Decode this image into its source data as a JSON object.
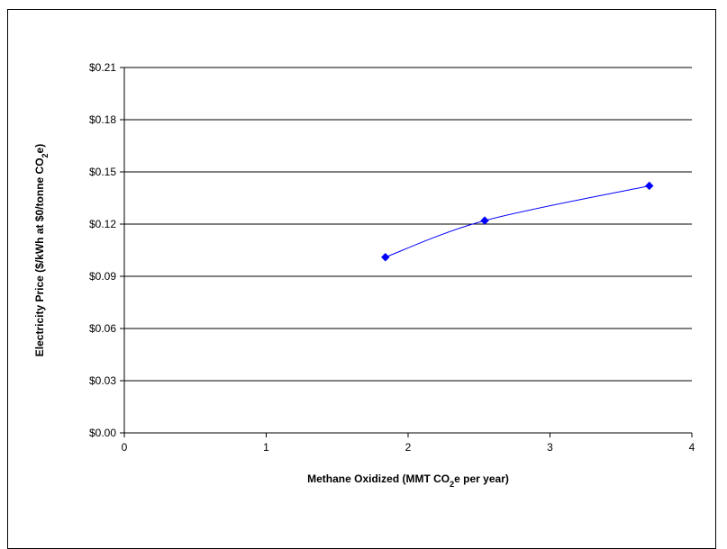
{
  "chart_data": {
    "type": "line",
    "title": "",
    "xlabel": {
      "before": "Methane Oxidized (MMT CO",
      "sub": "2",
      "after": "e per year)"
    },
    "ylabel": {
      "before": "Electricity Price ($/kWh at $0/tonne CO",
      "sub": "2",
      "after": "e)"
    },
    "xlim": [
      0,
      4
    ],
    "ylim": [
      0,
      0.21
    ],
    "x_ticks": [
      0,
      1,
      2,
      3,
      4
    ],
    "x_tick_labels": [
      "0",
      "1",
      "2",
      "3",
      "4"
    ],
    "y_ticks": [
      0,
      0.03,
      0.06,
      0.09,
      0.12,
      0.15,
      0.18,
      0.21
    ],
    "y_tick_labels": [
      "$0.00",
      "$0.03",
      "$0.06",
      "$0.09",
      "$0.12",
      "$0.15",
      "$0.18",
      "$0.21"
    ],
    "grid": "horizontal",
    "legend": "none",
    "series": [
      {
        "color": "#0000ff",
        "marker": "diamond",
        "points": [
          {
            "x": 1.84,
            "y": 0.101
          },
          {
            "x": 2.54,
            "y": 0.122
          },
          {
            "x": 3.7,
            "y": 0.142
          }
        ]
      }
    ]
  }
}
